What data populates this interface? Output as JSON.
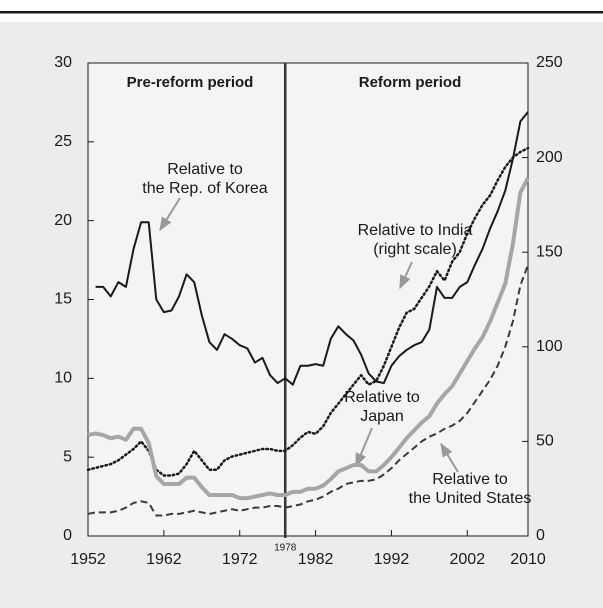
{
  "chart_data": {
    "type": "line",
    "xlim": [
      1952,
      2010
    ],
    "xticks": [
      1952,
      1962,
      1972,
      1982,
      1992,
      2002,
      2010
    ],
    "ylim": [
      0,
      30
    ],
    "yticks": [
      0,
      5,
      10,
      15,
      20,
      25,
      30
    ],
    "y2lim": [
      0,
      250
    ],
    "y2ticks": [
      0,
      50,
      100,
      150,
      200,
      250
    ],
    "reform_year": 1978,
    "periods": [
      "Pre-reform period",
      "Reform period"
    ],
    "x": [
      1952,
      1953,
      1954,
      1955,
      1956,
      1957,
      1958,
      1959,
      1960,
      1961,
      1962,
      1963,
      1964,
      1965,
      1966,
      1967,
      1968,
      1969,
      1970,
      1971,
      1972,
      1973,
      1974,
      1975,
      1976,
      1977,
      1978,
      1979,
      1980,
      1981,
      1982,
      1983,
      1984,
      1985,
      1986,
      1987,
      1988,
      1989,
      1990,
      1991,
      1992,
      1993,
      1994,
      1995,
      1996,
      1997,
      1998,
      1999,
      2000,
      2001,
      2002,
      2003,
      2004,
      2005,
      2006,
      2007,
      2008,
      2009,
      2010
    ],
    "series": [
      {
        "label": [
          "Relative to",
          "the Rep. of Korea"
        ],
        "color": "#1a1a1a",
        "style": "solid",
        "values": [
          null,
          15.8,
          15.8,
          15.2,
          16.1,
          15.8,
          18.2,
          19.9,
          19.9,
          15.0,
          14.2,
          14.3,
          15.2,
          16.6,
          16.1,
          14.0,
          12.3,
          11.8,
          12.8,
          12.5,
          12.1,
          11.9,
          11.0,
          11.3,
          10.2,
          9.7,
          10.0,
          9.6,
          10.8,
          10.8,
          10.9,
          10.8,
          12.5,
          13.3,
          12.8,
          12.4,
          11.5,
          10.3,
          9.8,
          9.7,
          10.8,
          11.4,
          11.8,
          12.1,
          12.3,
          13.1,
          15.8,
          15.1,
          15.1,
          15.8,
          16.1,
          17.2,
          18.2,
          19.5,
          20.6,
          21.9,
          23.9,
          26.3,
          26.9
        ]
      },
      {
        "label": [
          "Relative to India",
          "(right scale)"
        ],
        "color": "#1a1a1a",
        "style": "dotted",
        "axis": "y2",
        "values": [
          35,
          36,
          37,
          38,
          40,
          43,
          46,
          50,
          45,
          35,
          32,
          32,
          33,
          38,
          45,
          40,
          35,
          35,
          40,
          42,
          43,
          44,
          45,
          46,
          46,
          45,
          45,
          48,
          52,
          55,
          54,
          58,
          65,
          70,
          75,
          80,
          85,
          80,
          82,
          90,
          100,
          110,
          118,
          120,
          126,
          132,
          140,
          135,
          145,
          150,
          160,
          168,
          175,
          180,
          188,
          195,
          200,
          203,
          205
        ]
      },
      {
        "label": [
          "Relative to",
          "Japan"
        ],
        "color": "#a6a6a6",
        "style": "thick",
        "values": [
          6.4,
          6.5,
          6.4,
          6.2,
          6.3,
          6.1,
          6.8,
          6.8,
          5.9,
          3.8,
          3.3,
          3.3,
          3.3,
          3.7,
          3.7,
          3.1,
          2.6,
          2.6,
          2.6,
          2.6,
          2.4,
          2.4,
          2.5,
          2.6,
          2.7,
          2.6,
          2.6,
          2.8,
          2.8,
          3.0,
          3.0,
          3.2,
          3.6,
          4.1,
          4.3,
          4.5,
          4.5,
          4.1,
          4.1,
          4.5,
          5.0,
          5.6,
          6.2,
          6.7,
          7.2,
          7.6,
          8.4,
          9.0,
          9.5,
          10.3,
          11.1,
          11.9,
          12.6,
          13.6,
          14.8,
          16.0,
          18.5,
          21.8,
          22.7
        ]
      },
      {
        "label": [
          "Relative to",
          "the United States"
        ],
        "color": "#3a3a3a",
        "style": "dashed",
        "values": [
          1.4,
          1.5,
          1.5,
          1.5,
          1.6,
          1.8,
          2.1,
          2.2,
          2.1,
          1.3,
          1.3,
          1.4,
          1.4,
          1.5,
          1.6,
          1.5,
          1.4,
          1.5,
          1.6,
          1.7,
          1.6,
          1.7,
          1.8,
          1.8,
          1.9,
          1.9,
          1.8,
          1.9,
          2.0,
          2.2,
          2.3,
          2.5,
          2.8,
          3.0,
          3.3,
          3.4,
          3.5,
          3.5,
          3.6,
          3.9,
          4.3,
          4.8,
          5.2,
          5.6,
          6.0,
          6.3,
          6.5,
          6.8,
          7.0,
          7.3,
          7.8,
          8.5,
          9.2,
          9.9,
          10.8,
          12.0,
          13.6,
          15.9,
          17.2
        ]
      }
    ]
  }
}
